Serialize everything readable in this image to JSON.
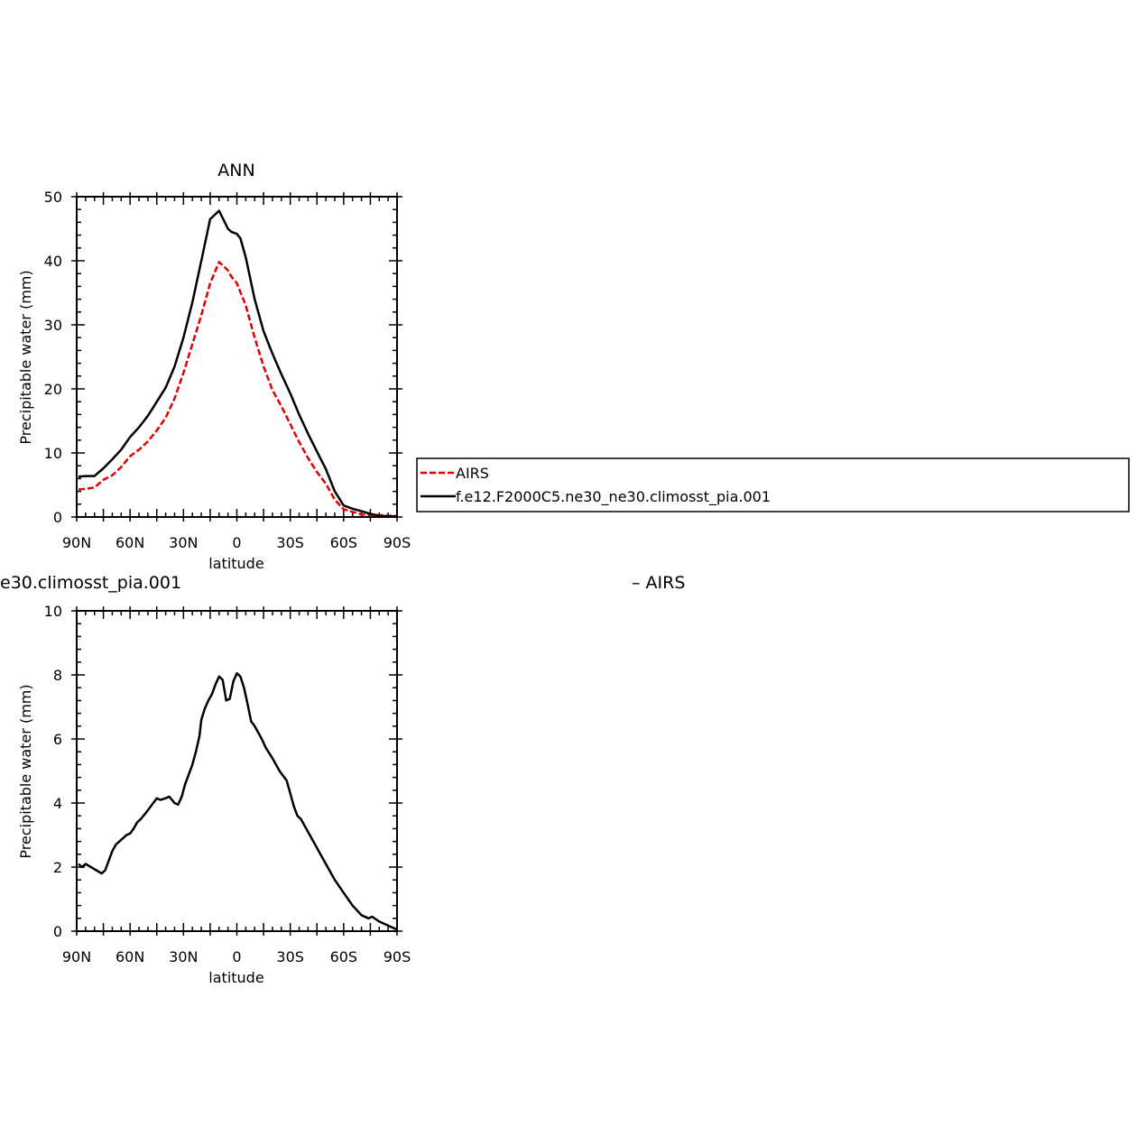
{
  "chart_data": [
    {
      "type": "line",
      "title": "ANN",
      "xlabel": "latitude",
      "ylabel": "Precipitable water (mm)",
      "xlim": [
        90,
        -90
      ],
      "ylim": [
        0,
        50
      ],
      "x_ticks": [
        90,
        60,
        30,
        0,
        -30,
        -60,
        -90
      ],
      "x_tick_labels": [
        "90N",
        "60N",
        "30N",
        "0",
        "30S",
        "60S",
        "90S"
      ],
      "y_ticks": [
        0,
        10,
        20,
        30,
        40,
        50
      ],
      "y_tick_labels": [
        "0",
        "10",
        "20",
        "30",
        "40",
        "50"
      ],
      "grid": false,
      "legend": {
        "placement": "right",
        "entries": [
          "AIRS",
          "f.e12.F2000C5.ne30_ne30.climosst_pia.001"
        ]
      },
      "series": [
        {
          "name": "AIRS",
          "color": "#e00000",
          "dashed": true,
          "x": [
            89,
            85,
            80,
            75,
            70,
            65,
            60,
            55,
            50,
            45,
            40,
            35,
            30,
            25,
            20,
            15,
            10,
            5,
            3,
            0,
            -5,
            -10,
            -15,
            -20,
            -25,
            -30,
            -35,
            -40,
            -45,
            -50,
            -55,
            -60,
            -65,
            -70,
            -75,
            -80,
            -85,
            -90
          ],
          "values": [
            4.3,
            4.4,
            4.6,
            5.8,
            6.5,
            7.8,
            9.5,
            10.5,
            11.8,
            13.5,
            15.5,
            18.5,
            22.5,
            27,
            31.5,
            36.5,
            39.8,
            38.5,
            37.5,
            36.5,
            33,
            28,
            23.5,
            19.8,
            17.3,
            14.5,
            11.7,
            9.2,
            7,
            5.2,
            2.7,
            1.2,
            0.8,
            0.4,
            0.3,
            0.3,
            0.2,
            0.2
          ]
        },
        {
          "name": "f.e12.F2000C5.ne30_ne30.climosst_pia.001",
          "color": "#000000",
          "dashed": false,
          "x": [
            89,
            85,
            80,
            75,
            70,
            65,
            60,
            55,
            50,
            45,
            40,
            35,
            30,
            25,
            20,
            15,
            10,
            5,
            3,
            0,
            -2,
            -5,
            -10,
            -15,
            -20,
            -25,
            -30,
            -35,
            -40,
            -45,
            -50,
            -55,
            -60,
            -65,
            -70,
            -75,
            -80,
            -85,
            -90
          ],
          "values": [
            6.3,
            6.4,
            6.4,
            7.6,
            9,
            10.5,
            12.5,
            14,
            15.8,
            18,
            20.2,
            23.5,
            28,
            33.5,
            40,
            46.5,
            47.8,
            45,
            44.5,
            44.2,
            43.5,
            40.5,
            34,
            29,
            25.5,
            22.3,
            19.3,
            16,
            13,
            10.2,
            7.5,
            4,
            1.8,
            1.3,
            0.9,
            0.5,
            0.2,
            0.1,
            0.1
          ]
        }
      ]
    },
    {
      "type": "line",
      "title": "e30.climosst_pia.001",
      "title_right": "– AIRS",
      "xlabel": "latitude",
      "ylabel": "Precipitable water (mm)",
      "xlim": [
        90,
        -90
      ],
      "ylim": [
        0,
        10
      ],
      "x_ticks": [
        90,
        60,
        30,
        0,
        -30,
        -60,
        -90
      ],
      "x_tick_labels": [
        "90N",
        "60N",
        "30N",
        "0",
        "30S",
        "60S",
        "90S"
      ],
      "y_ticks": [
        0,
        2,
        4,
        6,
        8,
        10
      ],
      "y_tick_labels": [
        "0",
        "2",
        "4",
        "6",
        "8",
        "10"
      ],
      "grid": false,
      "series": [
        {
          "color": "#000000",
          "dashed": false,
          "x": [
            89,
            87,
            85,
            82,
            79,
            76,
            74,
            72,
            70,
            68,
            65,
            62,
            60,
            58,
            56,
            54,
            51,
            49,
            47,
            45,
            43,
            40,
            38,
            35,
            33,
            31,
            29,
            27,
            25,
            23,
            21,
            20,
            18,
            16,
            14,
            12,
            10,
            8,
            6,
            4,
            2,
            0,
            -2,
            -4,
            -6,
            -8,
            -10,
            -12,
            -14,
            -16,
            -20,
            -24,
            -28,
            -30,
            -32,
            -34,
            -36,
            -38,
            -40,
            -43,
            -46,
            -50,
            -55,
            -60,
            -65,
            -70,
            -74,
            -76,
            -80,
            -82,
            -84,
            -86,
            -88,
            -90
          ],
          "values": [
            2.1,
            2,
            2.1,
            2,
            1.9,
            1.8,
            1.9,
            2.2,
            2.5,
            2.7,
            2.85,
            3.0,
            3.05,
            3.2,
            3.4,
            3.5,
            3.7,
            3.85,
            4.0,
            4.15,
            4.1,
            4.15,
            4.2,
            4.0,
            3.95,
            4.2,
            4.6,
            4.9,
            5.2,
            5.6,
            6.1,
            6.6,
            6.95,
            7.2,
            7.4,
            7.7,
            7.95,
            7.85,
            7.2,
            7.25,
            7.8,
            8.05,
            7.95,
            7.6,
            7.1,
            6.55,
            6.4,
            6.2,
            6.0,
            5.75,
            5.4,
            5.0,
            4.7,
            4.3,
            3.9,
            3.6,
            3.5,
            3.3,
            3.1,
            2.8,
            2.5,
            2.1,
            1.6,
            1.2,
            0.8,
            0.5,
            0.4,
            0.45,
            0.3,
            0.25,
            0.2,
            0.15,
            0.1,
            0.05
          ]
        }
      ]
    }
  ]
}
